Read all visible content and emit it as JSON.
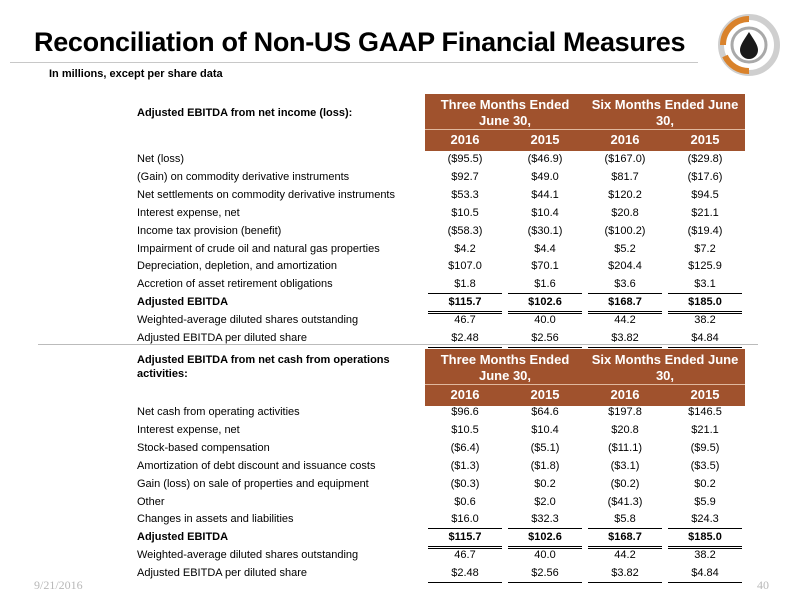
{
  "header": {
    "title": "Reconciliation of Non-US GAAP Financial Measures",
    "subtitle": "In millions, except per share data"
  },
  "colors": {
    "band": "#a0522d",
    "logo_orange": "#d9822b",
    "logo_gray": "#a9a9a9"
  },
  "logo": {
    "icon": "oil-drop-logo-icon"
  },
  "section_a": {
    "heading": "Adjusted EBITDA from net income (loss):",
    "group1": "Three Months Ended June 30,",
    "group2": "Six Months Ended June 30,",
    "years": [
      "2016",
      "2015",
      "2016",
      "2015"
    ],
    "rows": [
      {
        "label": "Net (loss)",
        "values": [
          "($95.5)",
          "($46.9)",
          "($167.0)",
          "($29.8)"
        ]
      },
      {
        "label": "(Gain) on commodity derivative instruments",
        "values": [
          "$92.7",
          "$49.0",
          "$81.7",
          "($17.6)"
        ]
      },
      {
        "label": "Net settlements on commodity derivative instruments",
        "values": [
          "$53.3",
          "$44.1",
          "$120.2",
          "$94.5"
        ]
      },
      {
        "label": "Interest expense, net",
        "values": [
          "$10.5",
          "$10.4",
          "$20.8",
          "$21.1"
        ]
      },
      {
        "label": "Income tax provision (benefit)",
        "values": [
          "($58.3)",
          "($30.1)",
          "($100.2)",
          "($19.4)"
        ]
      },
      {
        "label": "Impairment of crude oil and natural gas properties",
        "values": [
          "$4.2",
          "$4.4",
          "$5.2",
          "$7.2"
        ]
      },
      {
        "label": "Depreciation, depletion, and amortization",
        "values": [
          "$107.0",
          "$70.1",
          "$204.4",
          "$125.9"
        ]
      },
      {
        "label": "Accretion of asset retirement obligations",
        "values": [
          "$1.8",
          "$1.6",
          "$3.6",
          "$3.1"
        ]
      },
      {
        "label": "Adjusted EBITDA",
        "values": [
          "$115.7",
          "$102.6",
          "$168.7",
          "$185.0"
        ]
      },
      {
        "label": "Weighted-average diluted shares outstanding",
        "values": [
          "46.7",
          "40.0",
          "44.2",
          "38.2"
        ]
      },
      {
        "label": "Adjusted EBITDA per diluted share",
        "values": [
          "$2.48",
          "$2.56",
          "$3.82",
          "$4.84"
        ]
      }
    ]
  },
  "section_b": {
    "heading": "Adjusted EBITDA from net cash from operations activities:",
    "group1": "Three Months Ended June 30,",
    "group2": "Six Months Ended June 30,",
    "years": [
      "2016",
      "2015",
      "2016",
      "2015"
    ],
    "rows": [
      {
        "label": "Net cash from operating activities",
        "values": [
          "$96.6",
          "$64.6",
          "$197.8",
          "$146.5"
        ]
      },
      {
        "label": "Interest expense, net",
        "values": [
          "$10.5",
          "$10.4",
          "$20.8",
          "$21.1"
        ]
      },
      {
        "label": "Stock-based compensation",
        "values": [
          "($6.4)",
          "($5.1)",
          "($11.1)",
          "($9.5)"
        ]
      },
      {
        "label": "Amortization of debt discount and issuance costs",
        "values": [
          "($1.3)",
          "($1.8)",
          "($3.1)",
          "($3.5)"
        ]
      },
      {
        "label": "Gain (loss) on sale of properties and equipment",
        "values": [
          "($0.3)",
          "$0.2",
          "($0.2)",
          "$0.2"
        ]
      },
      {
        "label": "Other",
        "values": [
          "$0.6",
          "$2.0",
          "($41.3)",
          "$5.9"
        ]
      },
      {
        "label": "Changes in assets and liabilities",
        "values": [
          "$16.0",
          "$32.3",
          "$5.8",
          "$24.3"
        ]
      },
      {
        "label": "Adjusted EBITDA",
        "values": [
          "$115.7",
          "$102.6",
          "$168.7",
          "$185.0"
        ]
      },
      {
        "label": "Weighted-average diluted shares outstanding",
        "values": [
          "46.7",
          "40.0",
          "44.2",
          "38.2"
        ]
      },
      {
        "label": "Adjusted EBITDA per diluted share",
        "values": [
          "$2.48",
          "$2.56",
          "$3.82",
          "$4.84"
        ]
      }
    ]
  },
  "footer": {
    "date": "9/21/2016",
    "page": "40"
  }
}
